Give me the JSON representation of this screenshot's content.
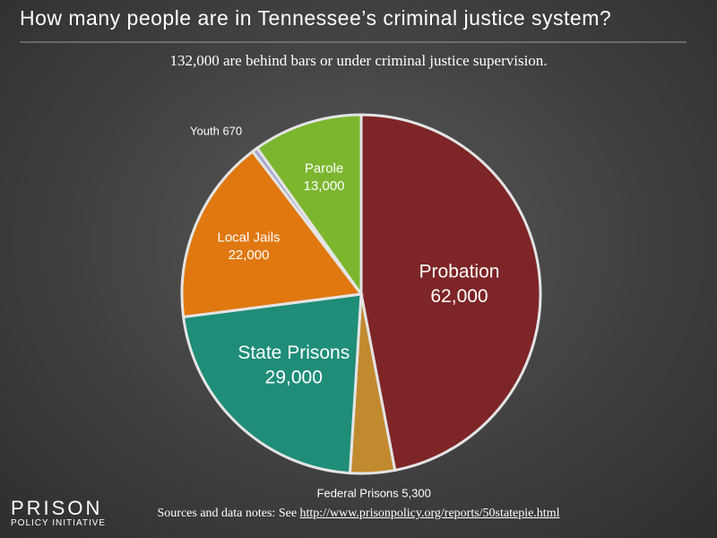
{
  "chart_data": {
    "type": "pie",
    "title": "How many people are in Tennessee’s criminal justice system?",
    "subtitle": "132,000 are behind bars or under criminal justice supervision.",
    "categories": [
      "Probation",
      "Federal Prisons",
      "State Prisons",
      "Local Jails",
      "Youth",
      "Parole"
    ],
    "values": [
      62000,
      5300,
      29000,
      22000,
      670,
      13000
    ],
    "value_labels": [
      "62,000",
      "5,300",
      "29,000",
      "22,000",
      "670",
      "13,000"
    ],
    "colors": [
      "#7e2527",
      "#c18a2e",
      "#1f8d78",
      "#e0780f",
      "#a3a6cc",
      "#7cb62f"
    ],
    "source_note": "Sources and data notes: See",
    "source_url": "http://www.prisonpolicy.org/reports/50statepie.html",
    "logo": {
      "line1": "PRISON",
      "line2": "POLICY INITIATIVE"
    }
  }
}
